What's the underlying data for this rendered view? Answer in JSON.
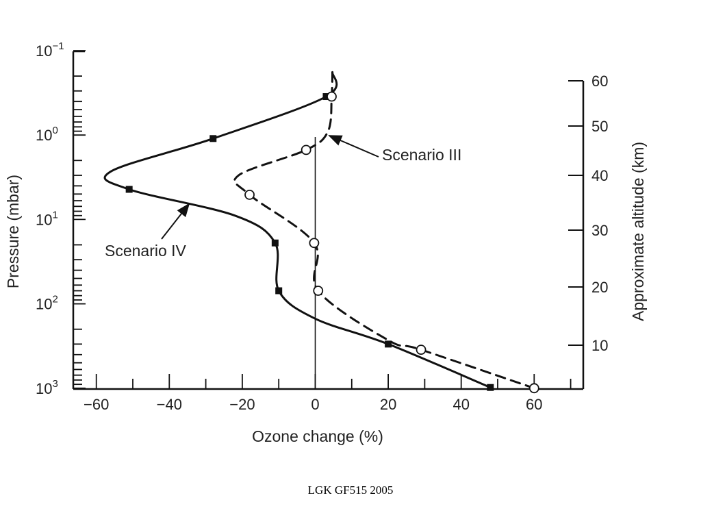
{
  "chart_data": {
    "type": "line",
    "xlabel": "Ozone change (%)",
    "ylabel": "Pressure (mbar)",
    "ylabel_right": "Approximate altitude (km)",
    "xlim": [
      -70,
      72
    ],
    "xticks": [
      -60,
      -40,
      -20,
      0,
      20,
      40,
      60
    ],
    "xtick_labels": [
      "−60",
      "−40",
      "−20",
      "0",
      "20",
      "40",
      "60"
    ],
    "y_scale": "log",
    "ylim_pressure": [
      0.1,
      1000
    ],
    "y_inverted": true,
    "yticks_left": [
      {
        "value": 0.1,
        "base": "10",
        "exp": "−1"
      },
      {
        "value": 1,
        "base": "10",
        "exp": "0"
      },
      {
        "value": 10,
        "base": "10",
        "exp": "1"
      },
      {
        "value": 100,
        "base": "10",
        "exp": "2"
      },
      {
        "value": 1000,
        "base": "10",
        "exp": "3"
      }
    ],
    "yticks_right_km": [
      10,
      20,
      30,
      40,
      50,
      60
    ],
    "series": [
      {
        "name": "Scenario IV",
        "style": "solid",
        "marker": "filled-square",
        "color": "#111111",
        "points": [
          {
            "x": 4.7,
            "y": 0.18
          },
          {
            "x": 3.0,
            "y": 0.35
          },
          {
            "x": -28.0,
            "y": 1.1
          },
          {
            "x": -56.0,
            "y": 2.7
          },
          {
            "x": -51.0,
            "y": 4.4
          },
          {
            "x": -22.0,
            "y": 9.0
          },
          {
            "x": -11.0,
            "y": 19.0
          },
          {
            "x": -10.0,
            "y": 70.0
          },
          {
            "x": 0.0,
            "y": 150.0
          },
          {
            "x": 20.0,
            "y": 300.0
          },
          {
            "x": 48.0,
            "y": 980.0
          }
        ],
        "marker_points": [
          {
            "x": 3.0,
            "y": 0.35
          },
          {
            "x": -28.0,
            "y": 1.1
          },
          {
            "x": -51.0,
            "y": 4.4
          },
          {
            "x": -11.0,
            "y": 19.0
          },
          {
            "x": -10.0,
            "y": 70.0
          },
          {
            "x": 20.0,
            "y": 300.0
          },
          {
            "x": 48.0,
            "y": 980.0
          }
        ]
      },
      {
        "name": "Scenario III",
        "style": "dashed",
        "marker": "open-circle",
        "color": "#111111",
        "points": [
          {
            "x": 4.7,
            "y": 0.18
          },
          {
            "x": 4.5,
            "y": 0.35
          },
          {
            "x": 3.5,
            "y": 0.9
          },
          {
            "x": -2.5,
            "y": 1.5
          },
          {
            "x": -21.0,
            "y": 3.0
          },
          {
            "x": -18.0,
            "y": 5.1
          },
          {
            "x": -0.3,
            "y": 19.0
          },
          {
            "x": 0.8,
            "y": 70.0
          },
          {
            "x": 20.0,
            "y": 270.0
          },
          {
            "x": 29.0,
            "y": 350.0
          },
          {
            "x": 60.0,
            "y": 1000.0
          }
        ],
        "marker_points": [
          {
            "x": 4.5,
            "y": 0.35
          },
          {
            "x": -2.5,
            "y": 1.5
          },
          {
            "x": -18.0,
            "y": 5.1
          },
          {
            "x": -0.3,
            "y": 19.0
          },
          {
            "x": 0.8,
            "y": 70.0
          },
          {
            "x": 29.0,
            "y": 350.0
          },
          {
            "x": 60.0,
            "y": 1000.0
          }
        ]
      }
    ],
    "annotations": [
      {
        "text": "Scenario III",
        "target": "Scenario III"
      },
      {
        "text": "Scenario IV",
        "target": "Scenario IV"
      }
    ],
    "zero_line": true,
    "grid": false,
    "legend": "none"
  },
  "footer": {
    "text": "LGK GF515 2005"
  }
}
